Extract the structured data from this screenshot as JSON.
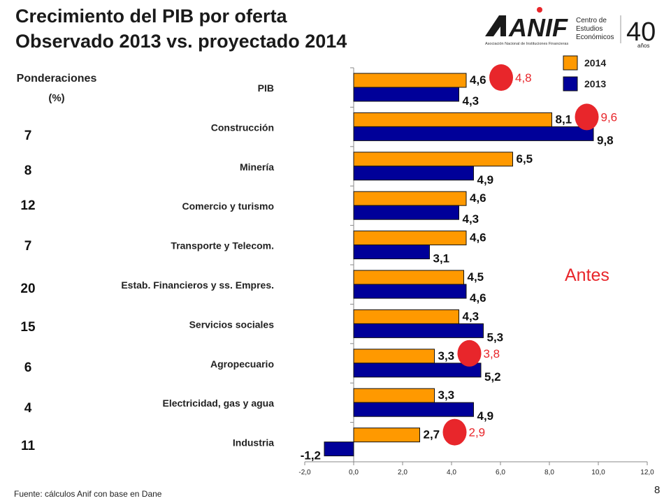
{
  "title": {
    "line1": "Crecimiento del PIB por oferta",
    "line2": "Observado 2013 vs. proyectado 2014"
  },
  "weights_header": {
    "label": "Ponderaciones",
    "unit": "(%)"
  },
  "weights": [
    "7",
    "8",
    "12",
    "7",
    "20",
    "15",
    "6",
    "4",
    "11"
  ],
  "logo": {
    "brand": "ANIF",
    "subtitle": "Asociación Nacional de Instituciones Financieras",
    "center_line1": "Centro de",
    "center_line2": "Estudios",
    "center_line3": "Económicos",
    "anniversary": "40",
    "anniversary_sub": "años"
  },
  "colors": {
    "s2014": "#FF9900",
    "s2013": "#000099",
    "highlight": "#E8262B",
    "marker": "#E8262B"
  },
  "note_label": "Antes",
  "footer": {
    "source": "Fuente:   cálculos  Anif con base en Dane",
    "page": "8"
  },
  "chart_data": {
    "type": "bar",
    "orientation": "horizontal",
    "categories": [
      "PIB",
      "Construcción",
      "Minería",
      "Comercio y turismo",
      "Transporte y Telecom.",
      "Estab. Financieros y ss. Empres.",
      "Servicios sociales",
      "Agropecuario",
      "Electricidad, gas y agua",
      "Industria"
    ],
    "series": [
      {
        "name": "2014",
        "values": [
          4.6,
          8.1,
          6.5,
          4.6,
          4.6,
          4.5,
          4.3,
          3.3,
          3.3,
          2.7
        ],
        "labels": [
          "4,6",
          "8,1",
          "6,5",
          "4,6",
          "4,6",
          "4,5",
          "4,3",
          "3,3",
          "3,3",
          "2,7"
        ]
      },
      {
        "name": "2013",
        "values": [
          4.3,
          9.8,
          4.9,
          4.3,
          3.1,
          4.6,
          5.3,
          5.2,
          4.9,
          -1.2
        ],
        "labels": [
          "4,3",
          "9,8",
          "4,9",
          "4,3",
          "3,1",
          "4,6",
          "5,3",
          "5,2",
          "4,9",
          "-1,2"
        ]
      }
    ],
    "previous_forecast": [
      {
        "category": "PIB",
        "value": 4.8,
        "label": "4,8"
      },
      {
        "category": "Construcción",
        "value": 9.6,
        "label": "9,6"
      },
      {
        "category": "Agropecuario",
        "value": 3.8,
        "label": "3,8"
      },
      {
        "category": "Industria",
        "value": 2.9,
        "label": "2,9"
      }
    ],
    "xlim": [
      -2,
      12
    ],
    "xticks": [
      -2,
      0,
      2,
      4,
      6,
      8,
      10,
      12
    ],
    "xtick_labels": [
      "-2,0",
      "0,0",
      "2,0",
      "4,0",
      "6,0",
      "8,0",
      "10,0",
      "12,0"
    ],
    "legend": [
      "2014",
      "2013"
    ],
    "legend_position": "top-right",
    "grid": false
  }
}
